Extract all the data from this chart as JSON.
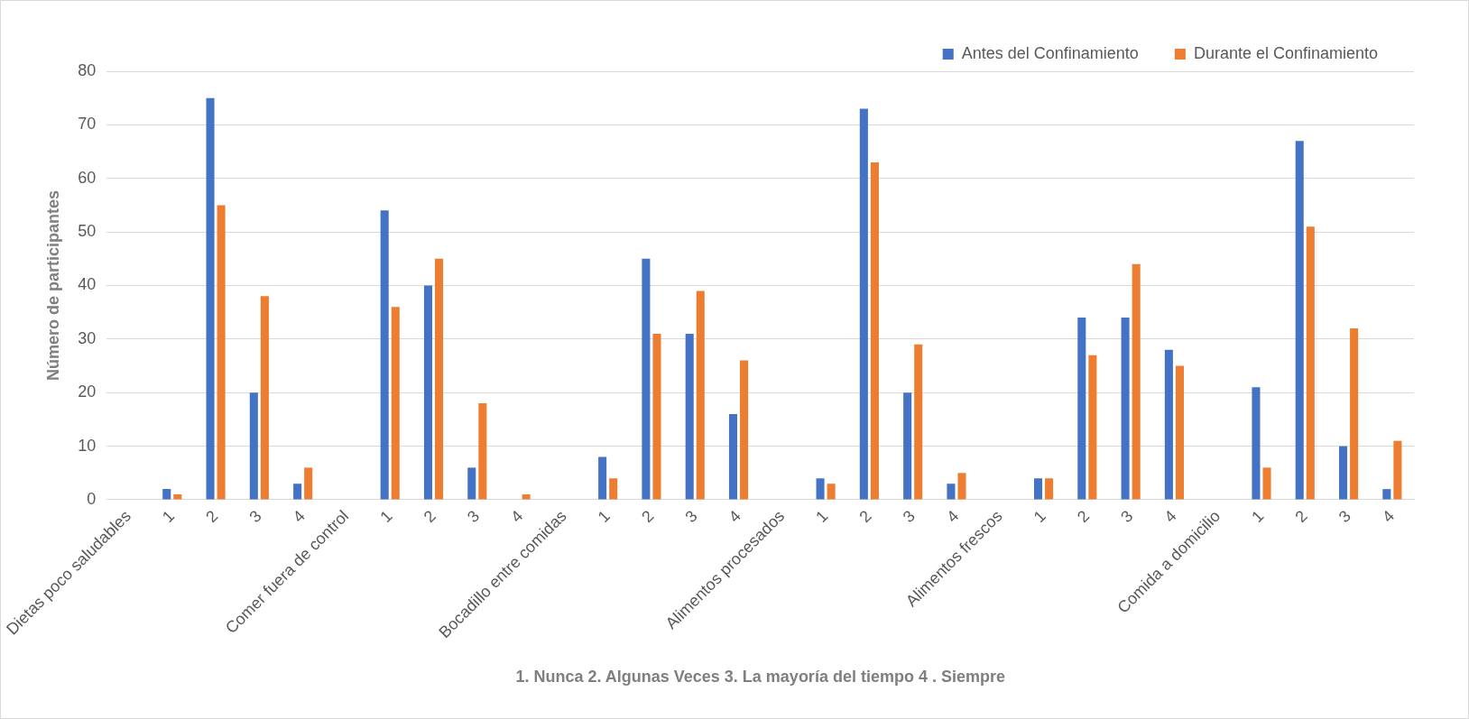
{
  "chart_data": {
    "type": "bar",
    "ylabel": "Número de participantes",
    "xlabel": "1. Nunca 2. Algunas Veces 3. La mayoría del tiempo 4 . Siempre",
    "categories": [
      "Dietas poco saludables",
      "1",
      "2",
      "3",
      "4",
      "Comer fuera de control",
      "1",
      "2",
      "3",
      "4",
      "Bocadillo entre comidas",
      "1",
      "2",
      "3",
      "4",
      "Alimentos procesados",
      "1",
      "2",
      "3",
      "4",
      "Alimentos frescos",
      "1",
      "2",
      "3",
      "4",
      "Comida a domicilio",
      "1",
      "2",
      "3",
      "4"
    ],
    "series": [
      {
        "name": "Antes del Confinamiento",
        "color": "#4472c4",
        "values": [
          null,
          2,
          75,
          20,
          3,
          null,
          54,
          40,
          6,
          null,
          null,
          8,
          45,
          31,
          16,
          null,
          4,
          73,
          20,
          3,
          null,
          4,
          34,
          34,
          28,
          null,
          21,
          67,
          10,
          2
        ]
      },
      {
        "name": "Durante el Confinamiento",
        "color": "#ed7d31",
        "values": [
          null,
          1,
          55,
          38,
          6,
          null,
          36,
          45,
          18,
          1,
          null,
          4,
          31,
          39,
          26,
          null,
          3,
          63,
          29,
          5,
          null,
          4,
          27,
          44,
          25,
          null,
          6,
          51,
          32,
          11
        ]
      }
    ],
    "ylim": [
      0,
      80
    ],
    "yticks": [
      0,
      10,
      20,
      30,
      40,
      50,
      60,
      70,
      80
    ],
    "grid": "y",
    "legend": "top right"
  }
}
